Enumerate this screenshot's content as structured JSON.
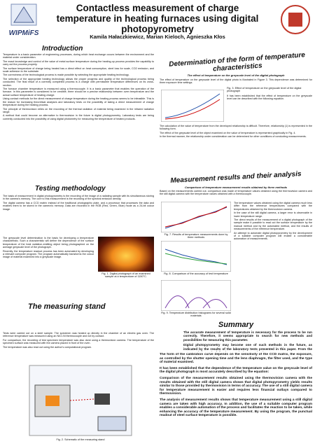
{
  "header": {
    "logo_text": "WIPMiFS",
    "title": "Contactless measurement of charge temperature in heating furnaces using digital photopyrometry",
    "authors": "Kamila Hałaczkiewicz, Marian Kieloch, Agnieszka Kłos"
  },
  "introduction": {
    "heading": "Introduction",
    "paragraphs": [
      "Temperature is a basic parameter of engineering processes, during which heat exchange occurs between the environment and the material under consideration.",
      "The exact knowledge and control of the value of metal surface temperature during the heating-up process provides the capability to carry out the process properly.",
      "The surface temperature of charge being heated has a direct effect on heat consumption, steel loss for scale, CO2 emission, and scale adhesion to the substrate.",
      "The correctness of the technological process is made possible by selecting the appropriate heating technology.",
      "The selection of the appropriate heating technology allows the proper progress and quality of the technological process being conducted. The final result of a correctly completed process is a charge with permissible temperature differences on its cross-section.",
      "The furnace chamber temperature is measured using a thermocouple. It is a basic parameter that enables the operation of the furnace. In this parameter is considered to be credible, there should be a precise relationship between oven temperature and the actual surface temperature of heating charge.",
      "Using contact methods for the direct measurement of charge temperature during the heating process seems to be infeasible. This is the reason for increasing theoretical analyses and laboratory tests on the possibility of taking a direct measurement of charge temperature during the heating process.",
      "The principle of thermovision relies on the recording of the thermal radiation of material being examined in the infrared radiation range.",
      "A method that could become an alternative to thermovision in the future is digital photopyrometry. Laboratory tests are being currently conducted into the possibility of using digital photometry for measuring the temperature of heated products."
    ]
  },
  "testing_methodology": {
    "heading": "Testing methodology",
    "paragraphs": [
      "The basis of measurement in digital photopyrometry is the recording of the image of a radiating sample with its simultaneous storing in the camera's memory. The core to this measurement is the recording of the spectral emission density.",
      "The digital camera has a CCD matrix instead of the traditional photographic plate, and a processor that processes the data and enables them to be stored in the camera's memory. Data are recorded in the RGB (Red, Green, Blue) mode as a 24-bit colour image.",
      "The greyscale level determination is the basis for developing a temperature characteristic. Such a characteristic will define the dependence of the surface temperature of the heat radiation-emitting object being photographed on the average greyscale level of the photograph.",
      "Recently, the temperature readout process has been automated by developing a relevant computer program. The program automatically transforms the colour image of material examined into a greyscale image."
    ]
  },
  "fig1": {
    "caption": "Fig. 1. Digital photograph of an examined sample at a temperature of 1150°C."
  },
  "measuring_stand": {
    "heading": "The measuring stand",
    "paragraphs": [
      "Tests were carried out on a steel sample. The specimen was heated up directly in the chamber of an electric gas oven. The reference temperature was measured using an NiCr-Ni thermocouple and not by contact.",
      "For comparison, the recording of test specimen temperature was also done using a thermovision camera. The temperature of the specimen surface was measured with the camera placed in front of the oven.",
      "The temperature was also read out using the author's computational program."
    ]
  },
  "fig2": {
    "caption": "Fig. 2. Schematic of the measuring stand"
  },
  "characteristics": {
    "heading": "Determination of the form of temperature characteristics",
    "subheading": "The effect of temperature on the greyscale level of the digital photograph",
    "paragraphs": [
      "The effect of temperature on the greyscale level of the digital photo is illustrated in Figure 3. This dependence was determined for three exposure time settings.",
      "It has been established that the effect of temperature on the greyscale level can be described with the following equation.",
      "The calculation of the value of temperature from the developed relationship is difficult. Therefore, relationship (1) is represented in the following form.",
      "The effect of the greyscale level of the object examined on the value of temperature is represented graphically in Fig. 4.",
      "In the thermal manner, the relationship under consideration can be determined for other conditions of conducting measurements."
    ],
    "fig3": "Fig. 3. Effect of temperature on the greyscale level of the digital photograph"
  },
  "results": {
    "heading": "Measurement results and their analysis",
    "subheading": "Comparison of temperature measurement results obtained by three methods",
    "paragraphs": [
      "Based on the measurements carried out, comparison was made of temperature values obtained using the thermovision camera and the still digital camera with the temperature values obtained with a thermocouple.",
      "The temperature values obtained using the digital camera much less differ from the reference temperatures compared with the temperatures obtained by the thermovision camera.",
      "In the case of the still digital camera, a larger error is observable in lower temperature range.",
      "The direct results of the measurement of a digital photograph of the sample make it possible to read out the surface temperature by the manual method and by the automated method, and the results of measurements of the reference temperature.",
      "An attempt to automate digital photopyrometry by the development of a suitable computer program will enable a considerable automation of measurements."
    ],
    "fig7": "Fig. 7. Results of temperature measurements done by three methods",
    "fig8": "Fig. 8. Comparison of the accuracy of test temperature",
    "fig9": "Fig. 9. Temperature distribution histograms for several solid materials"
  },
  "summary": {
    "heading": "Summary",
    "paragraphs": [
      "The accurate measurement of temperature is necessary for the process to be run correctly. Therefore, it seems appropriate to search for new methods and possibilities for measuring this parameter.",
      "Digital photopyrometry may become one of such methods in the future, as indicated by the results of the laboratory tests presented in this paper. From the tests carried out, the following conclusions can be drawn:"
    ],
    "points": [
      "The form of the calibration curve depends on the sensitivity of the CCD matrix, the exposure, as controlled by the shutter opening time and the lens diaphragm, the filter used, and the type of material examined.",
      "It has been established that the dependence of the temperature value on the greyscale level of the digital photograph is most accurately described by the equation:",
      "Comparison of the measurement results obtained using the thermovision camera with the results obtained with the still digital camera shows that digital photopyrometry yields results similar to those provided by thermovision in terms of accuracy. The use of a still digital camera for temperature measurement is easier and requires less financial outlays compared to thermovision.",
      "The analysis of measurement results shows that temperature measurement using a still digital camera are taken with high accuracy. In addition, the use of a suitable computer program enables a considerable automation of the process and facilitates the reaction to be taken, while enhancing the accuracy of the temperature measurement. By using the program, the punctual readout of steel surface temperature is possible."
    ]
  }
}
